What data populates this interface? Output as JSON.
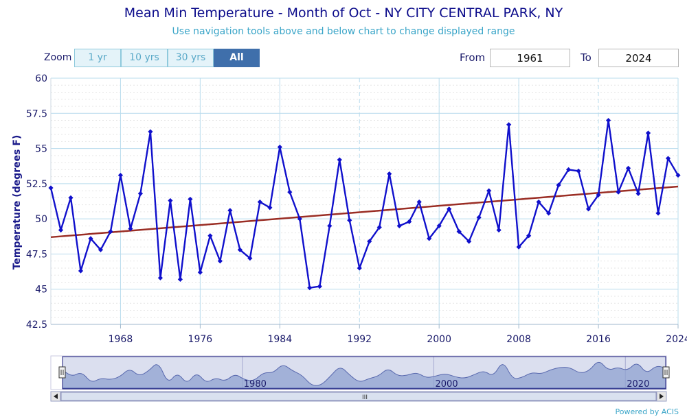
{
  "header": {
    "title": "Mean Min Temperature - Month of Oct - NY CITY CENTRAL PARK, NY",
    "subtitle": "Use navigation tools above and below chart to change displayed range"
  },
  "controls": {
    "zoom_label": "Zoom",
    "zoom_buttons": [
      "1 yr",
      "10 yrs",
      "30 yrs",
      "All"
    ],
    "from_label": "From",
    "from_value": "1961",
    "to_label": "To",
    "to_value": "2024"
  },
  "footer": {
    "credit": "Powered by ACIS"
  },
  "navigator": {
    "labels": [
      "1980",
      "2000",
      "2020"
    ],
    "scroll_grip": "III"
  },
  "colors": {
    "series": "#1010cc",
    "trend": "#9a2d24",
    "grid_major": "#b9dced",
    "grid_minor": "#e6e6e6",
    "navigator_fill": "#9aaed6",
    "accent": "#3f6fab"
  },
  "chart_data": {
    "type": "line",
    "title": "Mean Min Temperature - Month of Oct - NY CITY CENTRAL PARK, NY",
    "xlabel": "",
    "ylabel": "Temperature (degrees F)",
    "xlim": [
      1961,
      2024
    ],
    "ylim": [
      42.5,
      60
    ],
    "yticks": [
      "42.5",
      "45",
      "47.5",
      "50",
      "52.5",
      "55",
      "57.5",
      "60"
    ],
    "xticks": [
      "1968",
      "1976",
      "1984",
      "1992",
      "2000",
      "2008",
      "2016",
      "2024"
    ],
    "x": [
      1961,
      1962,
      1963,
      1964,
      1965,
      1966,
      1967,
      1968,
      1969,
      1970,
      1971,
      1972,
      1973,
      1974,
      1975,
      1976,
      1977,
      1978,
      1979,
      1980,
      1981,
      1982,
      1983,
      1984,
      1985,
      1986,
      1987,
      1988,
      1989,
      1990,
      1991,
      1992,
      1993,
      1994,
      1995,
      1996,
      1997,
      1998,
      1999,
      2000,
      2001,
      2002,
      2003,
      2004,
      2005,
      2006,
      2007,
      2008,
      2009,
      2010,
      2011,
      2012,
      2013,
      2014,
      2015,
      2016,
      2017,
      2018,
      2019,
      2020,
      2021,
      2022,
      2023,
      2024
    ],
    "series": [
      {
        "name": "Mean Min Temperature",
        "values": [
          52.2,
          49.2,
          51.5,
          46.3,
          48.6,
          47.8,
          49.1,
          53.1,
          49.3,
          51.8,
          56.2,
          45.8,
          51.3,
          45.7,
          51.4,
          46.2,
          48.8,
          47.0,
          50.6,
          47.8,
          47.2,
          51.2,
          50.8,
          55.1,
          51.9,
          50.0,
          45.1,
          45.2,
          49.5,
          54.2,
          49.9,
          46.5,
          48.4,
          49.4,
          53.2,
          49.5,
          49.8,
          51.2,
          48.6,
          49.5,
          50.7,
          49.1,
          48.4,
          50.1,
          52.0,
          49.2,
          56.7,
          48.0,
          48.8,
          51.2,
          50.4,
          52.4,
          53.5,
          53.4,
          50.7,
          51.7,
          57.0,
          51.9,
          53.6,
          51.8,
          56.1,
          50.4,
          54.3,
          53.1
        ]
      },
      {
        "name": "Trend",
        "type": "linear",
        "x": [
          1961,
          2024
        ],
        "values": [
          48.7,
          52.3
        ]
      }
    ]
  }
}
